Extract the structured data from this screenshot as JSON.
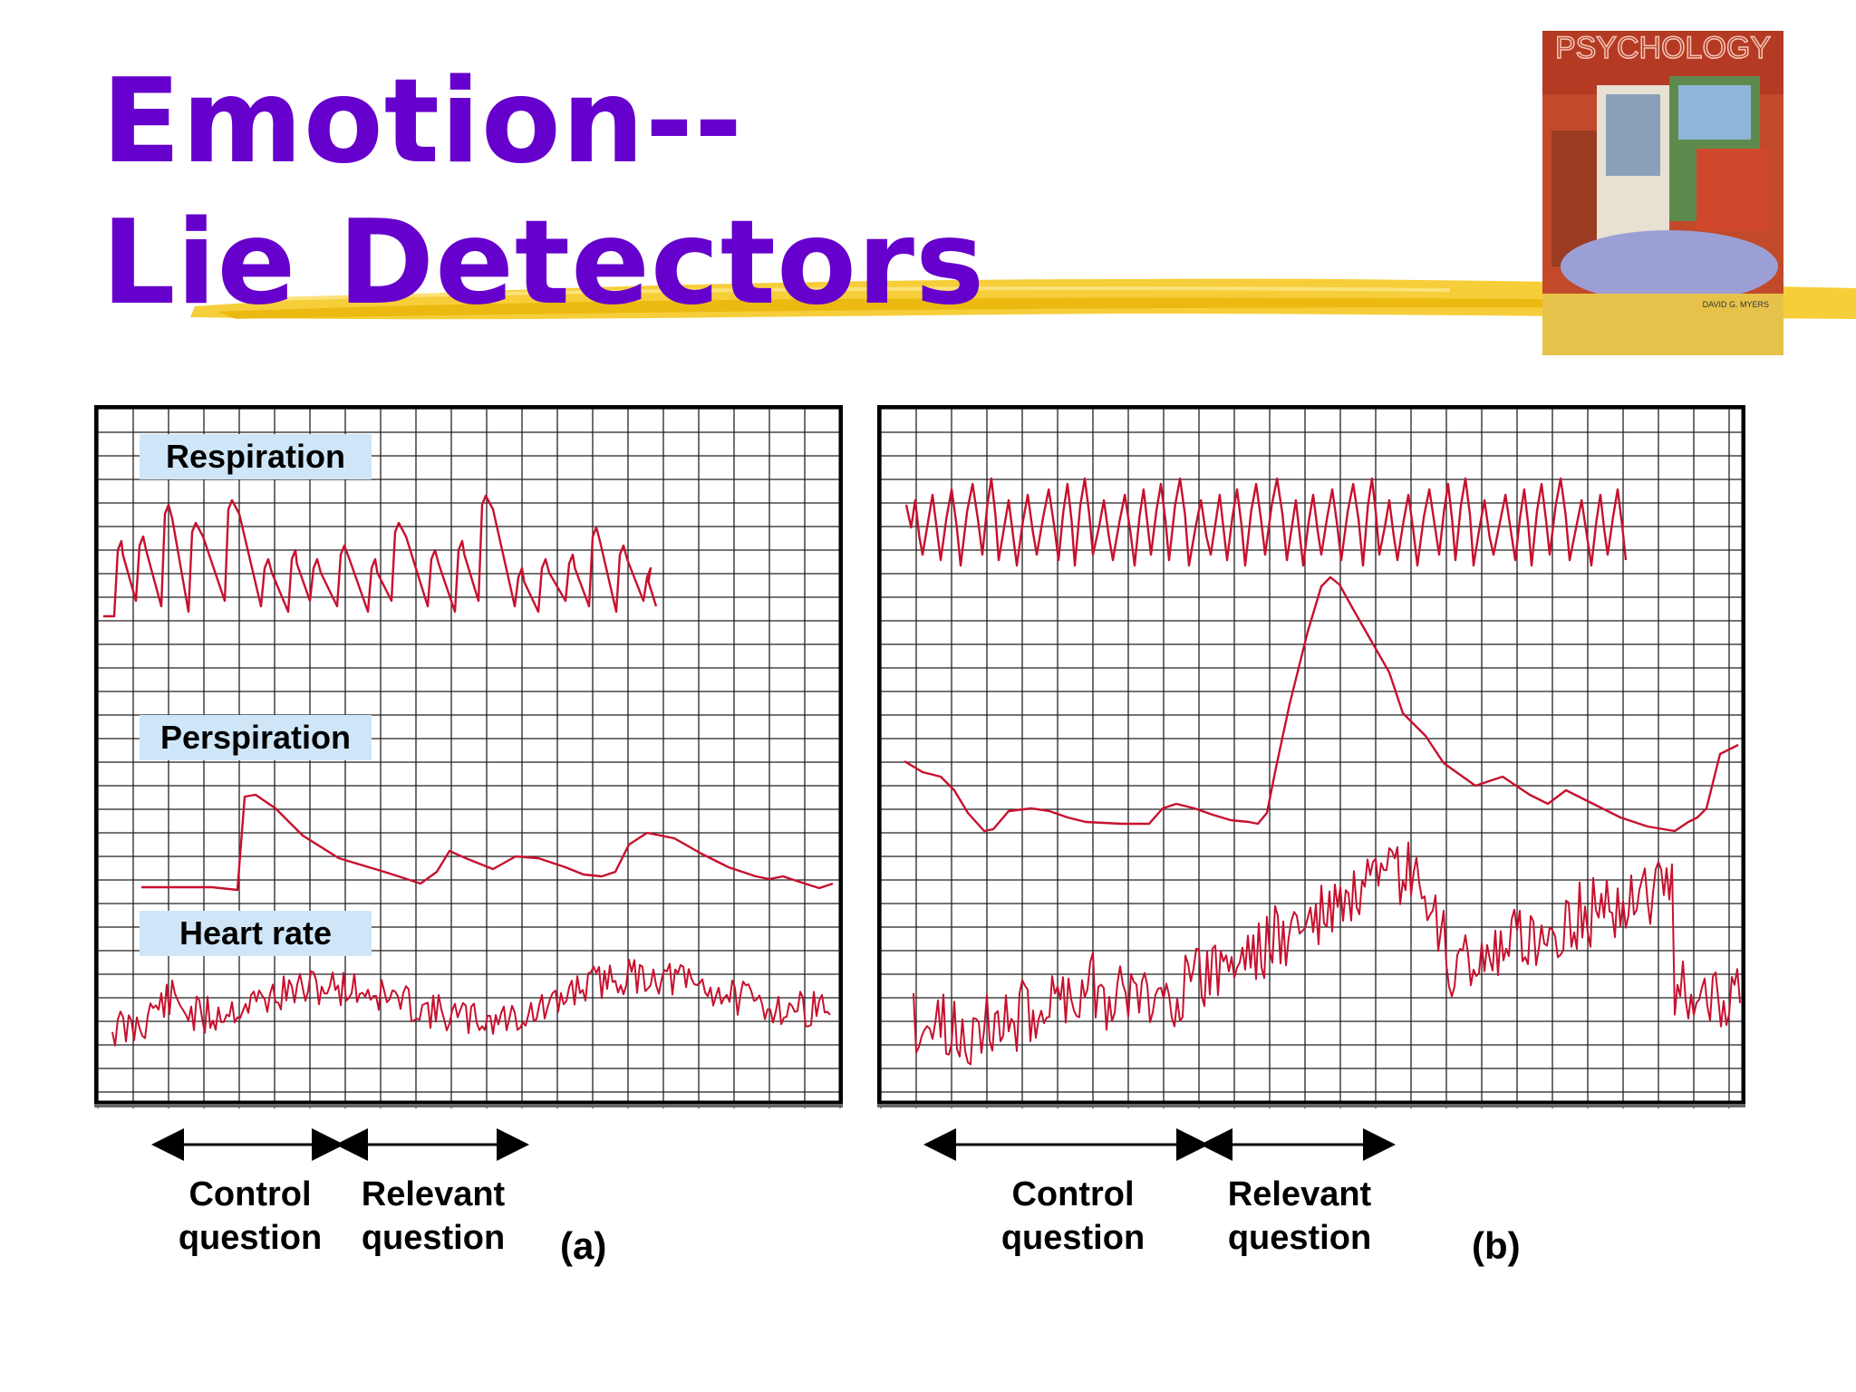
{
  "title": {
    "line1": "Emotion--",
    "line2": "Lie Detectors"
  },
  "colors": {
    "title": "#6600cc",
    "brush": "#f5c518",
    "trace": "#c8102e",
    "grid": "#000000",
    "label_bg": "#cfe6f8"
  },
  "book_cover": {
    "title": "PSYCHOLOGY",
    "author": "DAVID G. MYERS"
  },
  "panel_a": {
    "labels": {
      "respiration": "Respiration",
      "perspiration": "Perspiration",
      "heart_rate": "Heart rate"
    },
    "questions": {
      "control_line1": "Control",
      "control_line2": "question",
      "relevant_line1": "Relevant",
      "relevant_line2": "question"
    },
    "panel_label": "(a)"
  },
  "panel_b": {
    "questions": {
      "control_line1": "Control",
      "control_line2": "question",
      "relevant_line1": "Relevant",
      "relevant_line2": "question"
    },
    "panel_label": "(b)"
  }
}
